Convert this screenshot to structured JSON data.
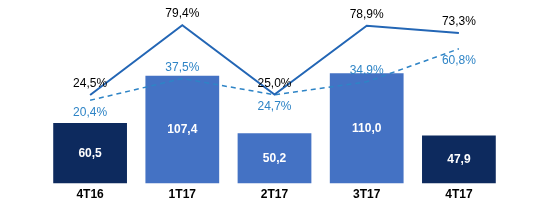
{
  "chart_data": {
    "type": "bar",
    "categories": [
      "4T16",
      "1T17",
      "2T17",
      "3T17",
      "4T17"
    ],
    "ylim": [
      0,
      165
    ],
    "y2lim": [
      -45,
      85
    ],
    "grid": false,
    "tick_labels": "x",
    "data_labels": true,
    "series": [
      {
        "type": "bar",
        "colors": [
          "#0d2a5e",
          "#4472c4",
          "#4472c4",
          "#4472c4",
          "#0d2a5e"
        ],
        "values": [
          60.5,
          107.4,
          50.2,
          110.0,
          47.9
        ],
        "value_labels": [
          "60,5",
          "107,4",
          "50,2",
          "110,0",
          "47,9"
        ]
      },
      {
        "type": "line",
        "axis": "y2",
        "color": "#2366b5",
        "line_style": "solid",
        "values": [
          24.5,
          79.4,
          25.0,
          78.9,
          73.3
        ],
        "value_labels": [
          "24,5%",
          "79,4%",
          "25,0%",
          "78,9%",
          "73,3%"
        ]
      },
      {
        "type": "line",
        "axis": "y2",
        "color": "#2e84c6",
        "line_style": "dashed",
        "values": [
          20.4,
          37.5,
          24.7,
          34.9,
          60.8
        ],
        "value_labels": [
          "20,4%",
          "37,5%",
          "24,7%",
          "34,9%",
          "60,8%"
        ]
      }
    ]
  }
}
